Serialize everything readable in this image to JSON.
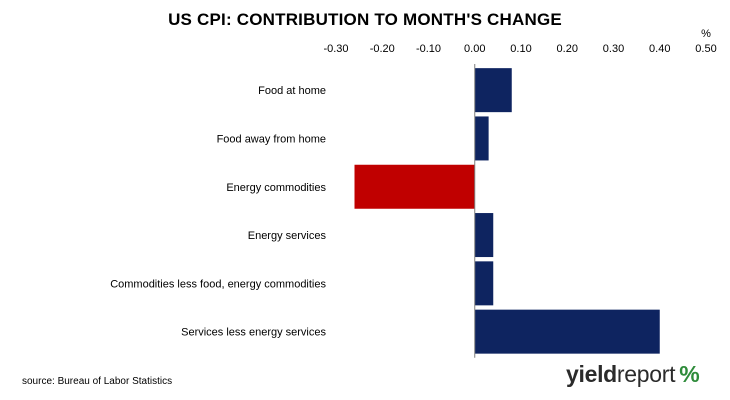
{
  "chart_data": {
    "type": "bar",
    "orientation": "horizontal",
    "title": "US CPI: CONTRIBUTION TO MONTH'S CHANGE",
    "unit_label": "%",
    "categories": [
      "Food at home",
      "Food away from home",
      "Energy commodities",
      "Energy services",
      "Commodities less food, energy commodities",
      "Services less energy services"
    ],
    "values": [
      0.08,
      0.03,
      -0.26,
      0.04,
      0.04,
      0.4
    ],
    "xlim": [
      -0.3,
      0.5
    ],
    "xticks": [
      "-0.30",
      "-0.20",
      "-0.10",
      "0.00",
      "0.10",
      "0.20",
      "0.30",
      "0.40",
      "0.50"
    ],
    "axis_position": "top",
    "grid": false,
    "colors": {
      "positive": "#0e2460",
      "negative": "#c00000"
    }
  },
  "footer": {
    "source": "source: Bureau of Labor Statistics",
    "logo_part1": "yield",
    "logo_part2": "report",
    "logo_symbol": "%"
  }
}
